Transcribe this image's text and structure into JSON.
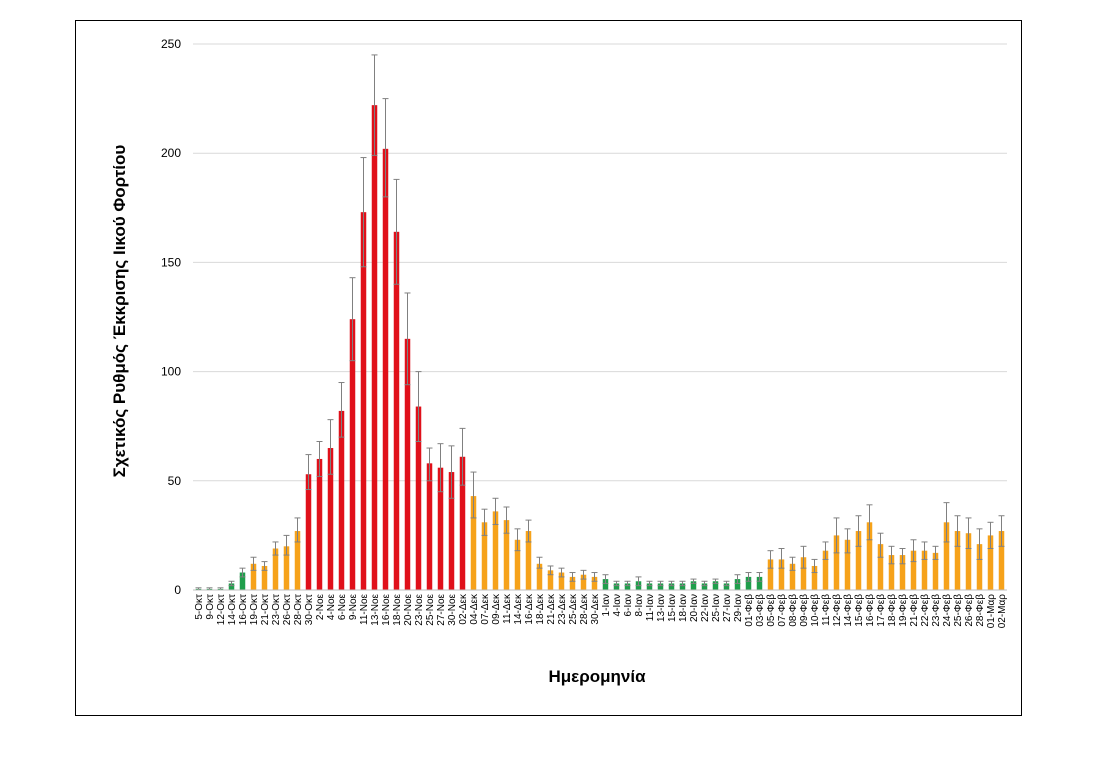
{
  "chart_data": {
    "type": "bar",
    "xlabel": "Ημερομηνία",
    "ylabel": "Σχετικός Ρυθμός Έκκρισης Ιικού Φορτίου",
    "ylim": [
      0,
      250
    ],
    "yticks": [
      0,
      50,
      100,
      150,
      200,
      250
    ],
    "grid": "horizontal",
    "legend": "none",
    "colors": {
      "green": "#1f9e4b",
      "orange": "#f6a21a",
      "red": "#e0101a",
      "error_bar": "#808080",
      "gridline": "#d9d9d9"
    },
    "categories": [
      "5-Οκτ",
      "9-Οκτ",
      "12-Οκτ",
      "14-Οκτ",
      "16-Οκτ",
      "19-Οκτ",
      "21-Οκτ",
      "23-Οκτ",
      "26-Οκτ",
      "28-Οκτ",
      "30-Οκτ",
      "2-Νοε",
      "4-Νοε",
      "6-Νοε",
      "9-Νοε",
      "11-Νοε",
      "13-Νοε",
      "16-Νοε",
      "18-Νοε",
      "20-Νοε",
      "23-Νοε",
      "25-Νοε",
      "27-Νοε",
      "30-Νοε",
      "02-Δεκ",
      "04-Δεκ",
      "07-Δεκ",
      "09-Δεκ",
      "11-Δεκ",
      "14-Δεκ",
      "16-Δεκ",
      "18-Δεκ",
      "21-Δεκ",
      "23-Δεκ",
      "25-Δεκ",
      "28-Δεκ",
      "30-Δεκ",
      "1-Ιαν",
      "4-Ιαν",
      "6-Ιαν",
      "8-Ιαν",
      "11-Ιαν",
      "13-Ιαν",
      "15-Ιαν",
      "18-Ιαν",
      "20-Ιαν",
      "22-Ιαν",
      "25-Ιαν",
      "27-Ιαν",
      "29-Ιαν",
      "01-Φεβ",
      "03-Φεβ",
      "05-Φεβ",
      "07-Φεβ",
      "08-Φεβ",
      "09-Φεβ",
      "10-Φεβ",
      "11-Φεβ",
      "12-Φεβ",
      "14-Φεβ",
      "15-Φεβ",
      "16-Φεβ",
      "17-Φεβ",
      "18-Φεβ",
      "19-Φεβ",
      "21-Φεβ",
      "22-Φεβ",
      "23-Φεβ",
      "24-Φεβ",
      "25-Φεβ",
      "26-Φεβ",
      "28-Φεβ",
      "01-Μαρ",
      "02-Μαρ"
    ],
    "values": [
      0.5,
      0.5,
      0.5,
      3,
      8,
      12,
      11,
      19,
      20,
      27,
      53,
      60,
      65,
      82,
      124,
      173,
      222,
      202,
      164,
      115,
      84,
      58,
      56,
      54,
      61,
      43,
      31,
      36,
      32,
      23,
      27,
      12,
      9,
      8,
      6,
      7,
      6,
      5,
      3,
      3,
      4,
      3,
      3,
      3,
      3,
      4,
      3,
      4,
      3,
      5,
      6,
      6,
      14,
      14,
      12,
      15,
      11,
      18,
      25,
      23,
      27,
      31,
      21,
      16,
      16,
      18,
      18,
      17,
      31,
      27,
      26,
      21,
      25,
      27
    ],
    "error_high": [
      1,
      1,
      1,
      4,
      10,
      15,
      13,
      22,
      25,
      33,
      62,
      68,
      78,
      95,
      143,
      198,
      245,
      225,
      188,
      136,
      100,
      65,
      67,
      66,
      74,
      54,
      37,
      42,
      38,
      28,
      32,
      15,
      11,
      10,
      8,
      9,
      8,
      7,
      4,
      4,
      6,
      4,
      4,
      4,
      4,
      5,
      4,
      5,
      4,
      7,
      8,
      8,
      18,
      19,
      15,
      20,
      14,
      22,
      33,
      28,
      34,
      39,
      26,
      20,
      19,
      23,
      22,
      20,
      40,
      34,
      33,
      28,
      31,
      34
    ],
    "error_low": [
      0,
      0,
      0,
      2,
      6,
      9,
      9,
      16,
      16,
      22,
      46,
      52,
      53,
      70,
      105,
      148,
      199,
      180,
      140,
      94,
      68,
      50,
      45,
      42,
      48,
      33,
      25,
      30,
      26,
      18,
      22,
      10,
      7,
      6,
      4,
      5,
      4,
      3,
      2,
      2,
      2,
      2,
      2,
      2,
      2,
      3,
      2,
      3,
      2,
      3,
      4,
      4,
      10,
      10,
      9,
      10,
      8,
      14,
      17,
      17,
      20,
      23,
      15,
      12,
      12,
      13,
      14,
      14,
      22,
      20,
      19,
      14,
      19,
      20
    ],
    "color_class": [
      "green",
      "green",
      "green",
      "green",
      "green",
      "orange",
      "orange",
      "orange",
      "orange",
      "orange",
      "red",
      "red",
      "red",
      "red",
      "red",
      "red",
      "red",
      "red",
      "red",
      "red",
      "red",
      "red",
      "red",
      "red",
      "red",
      "orange",
      "orange",
      "orange",
      "orange",
      "orange",
      "orange",
      "orange",
      "orange",
      "orange",
      "orange",
      "orange",
      "orange",
      "green",
      "green",
      "green",
      "green",
      "green",
      "green",
      "green",
      "green",
      "green",
      "green",
      "green",
      "green",
      "green",
      "green",
      "green",
      "orange",
      "orange",
      "orange",
      "orange",
      "orange",
      "orange",
      "orange",
      "orange",
      "orange",
      "orange",
      "orange",
      "orange",
      "orange",
      "orange",
      "orange",
      "orange",
      "orange",
      "orange",
      "orange",
      "orange",
      "orange",
      "orange"
    ]
  }
}
